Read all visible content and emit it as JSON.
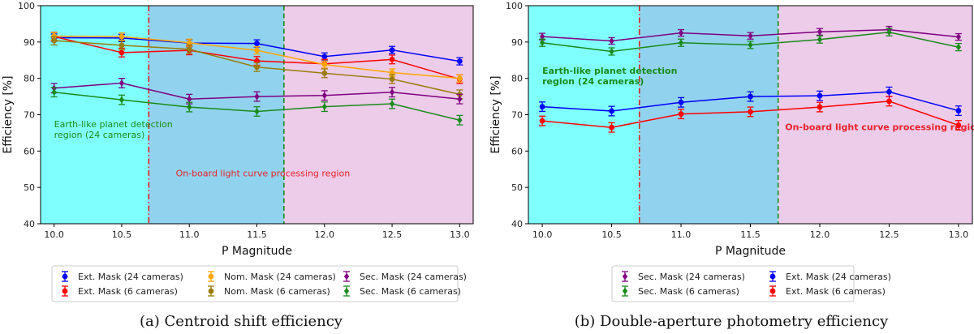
{
  "chart_data": [
    {
      "type": "line",
      "caption": "(a) Centroid shift efficiency",
      "xlabel": "P Magnitude",
      "ylabel": "Efficiency [%]",
      "xlim": [
        9.9,
        13.1
      ],
      "ylim": [
        40,
        100
      ],
      "x": [
        10.0,
        10.5,
        11.0,
        11.5,
        12.0,
        12.5,
        13.0
      ],
      "xticks": [
        "10.0",
        "10.5",
        "11.0",
        "11.5",
        "12.0",
        "12.5",
        "13.0"
      ],
      "yticks": [
        "40",
        "50",
        "60",
        "70",
        "80",
        "90",
        "100"
      ],
      "regions": [
        {
          "from": 9.9,
          "to": 10.7,
          "color": "#80ffff"
        },
        {
          "from": 10.7,
          "to": 11.7,
          "color": "#91d3ee"
        },
        {
          "from": 11.7,
          "to": 13.1,
          "color": "#eccce9"
        }
      ],
      "vlines": [
        {
          "x": 10.7,
          "color": "#d62728",
          "style": "dashdot"
        },
        {
          "x": 11.7,
          "color": "#1a8a1a",
          "style": "dashed"
        }
      ],
      "annotations": [
        {
          "lines": [
            "Earth-like planet detection",
            "region (24 cameras)"
          ],
          "x": 10.0,
          "y": 66.5,
          "color": "#1a8a1a",
          "bold": false
        },
        {
          "lines": [
            "On-board light curve processing region"
          ],
          "x": 10.9,
          "y": 53,
          "color": "#e8212b",
          "bold": false
        }
      ],
      "legend_cols": 3,
      "series": [
        {
          "name": "Ext. Mask (24 cameras)",
          "color": "#0000ff",
          "marker": "circle",
          "values": [
            91.2,
            91.1,
            89.7,
            89.6,
            86.0,
            87.8,
            84.7
          ],
          "err": [
            1.0,
            1.0,
            1.0,
            1.0,
            1.0,
            1.0,
            1.0
          ]
        },
        {
          "name": "Ext. Mask (6 cameras)",
          "color": "#ff0000",
          "marker": "circle",
          "values": [
            91.5,
            87.1,
            87.7,
            84.8,
            84.0,
            85.2,
            79.8
          ],
          "err": [
            1.2,
            1.2,
            1.2,
            1.2,
            1.2,
            1.2,
            1.2
          ]
        },
        {
          "name": "Nom. Mask (24 cameras)",
          "color": "#ffa500",
          "marker": "circle",
          "values": [
            91.6,
            91.5,
            89.8,
            87.7,
            83.8,
            81.6,
            80.0
          ],
          "err": [
            1.0,
            1.0,
            1.0,
            1.0,
            1.0,
            1.0,
            1.0
          ]
        },
        {
          "name": "Nom. Mask (6 cameras)",
          "color": "#9a7d0a",
          "marker": "circle",
          "values": [
            90.4,
            89.1,
            88.0,
            83.1,
            81.4,
            79.8,
            75.6
          ],
          "err": [
            1.2,
            1.2,
            1.2,
            1.2,
            1.2,
            1.2,
            1.2
          ]
        },
        {
          "name": "Sec. Mask (24 cameras)",
          "color": "#800080",
          "marker": "diamond",
          "values": [
            77.3,
            78.7,
            74.3,
            75.0,
            75.3,
            76.2,
            74.3
          ],
          "err": [
            1.3,
            1.3,
            1.3,
            1.3,
            1.3,
            1.3,
            1.3
          ]
        },
        {
          "name": "Sec. Mask (6 cameras)",
          "color": "#1a8a1a",
          "marker": "diamond",
          "values": [
            76.2,
            74.1,
            72.1,
            70.9,
            72.2,
            73.0,
            68.5
          ],
          "err": [
            1.3,
            1.3,
            1.3,
            1.3,
            1.3,
            1.3,
            1.3
          ]
        }
      ]
    },
    {
      "type": "line",
      "caption": "(b) Double-aperture photometry efficiency",
      "xlabel": "P Magnitude",
      "ylabel": "Efficiency [%]",
      "xlim": [
        9.9,
        13.1
      ],
      "ylim": [
        40,
        100
      ],
      "x": [
        10.0,
        10.5,
        11.0,
        11.5,
        12.0,
        12.5,
        13.0
      ],
      "xticks": [
        "10.0",
        "10.5",
        "11.0",
        "11.5",
        "12.0",
        "12.5",
        "13.0"
      ],
      "yticks": [
        "40",
        "50",
        "60",
        "70",
        "80",
        "90",
        "100"
      ],
      "regions": [
        {
          "from": 9.9,
          "to": 10.7,
          "color": "#80ffff"
        },
        {
          "from": 10.7,
          "to": 11.7,
          "color": "#91d3ee"
        },
        {
          "from": 11.7,
          "to": 13.1,
          "color": "#eccce9"
        }
      ],
      "vlines": [
        {
          "x": 10.7,
          "color": "#d62728",
          "style": "dashdot"
        },
        {
          "x": 11.7,
          "color": "#1a8a1a",
          "style": "dashed"
        }
      ],
      "annotations": [
        {
          "lines": [
            "Earth-like planet detection",
            "region (24 cameras)"
          ],
          "x": 10.0,
          "y": 81.3,
          "color": "#1a8a1a",
          "bold": true
        },
        {
          "lines": [
            "On-board light curve processing region"
          ],
          "x": 11.75,
          "y": 65.8,
          "color": "#e8212b",
          "bold": true
        }
      ],
      "legend_cols": 2,
      "series": [
        {
          "name": "Sec. Mask (24 cameras)",
          "color": "#800080",
          "marker": "diamond",
          "values": [
            91.5,
            90.3,
            92.5,
            91.7,
            92.8,
            93.4,
            91.4
          ],
          "err": [
            0.9,
            0.9,
            0.9,
            0.9,
            0.9,
            0.9,
            0.9
          ]
        },
        {
          "name": "Sec. Mask (6 cameras)",
          "color": "#1a8a1a",
          "marker": "diamond",
          "values": [
            89.8,
            87.4,
            89.8,
            89.2,
            90.7,
            92.7,
            88.6
          ],
          "err": [
            1.0,
            1.0,
            1.0,
            1.0,
            1.0,
            1.0,
            1.0
          ]
        },
        {
          "name": "Ext. Mask (24 cameras)",
          "color": "#0000ff",
          "marker": "circle",
          "values": [
            72.2,
            71.0,
            73.4,
            75.0,
            75.2,
            76.3,
            71.1
          ],
          "err": [
            1.3,
            1.3,
            1.3,
            1.3,
            1.3,
            1.3,
            1.3
          ]
        },
        {
          "name": "Ext. Mask (6 cameras)",
          "color": "#ff0000",
          "marker": "circle",
          "values": [
            68.3,
            66.5,
            70.2,
            70.8,
            72.1,
            73.7,
            67.1
          ],
          "err": [
            1.3,
            1.3,
            1.3,
            1.3,
            1.3,
            1.3,
            1.3
          ]
        }
      ]
    }
  ]
}
